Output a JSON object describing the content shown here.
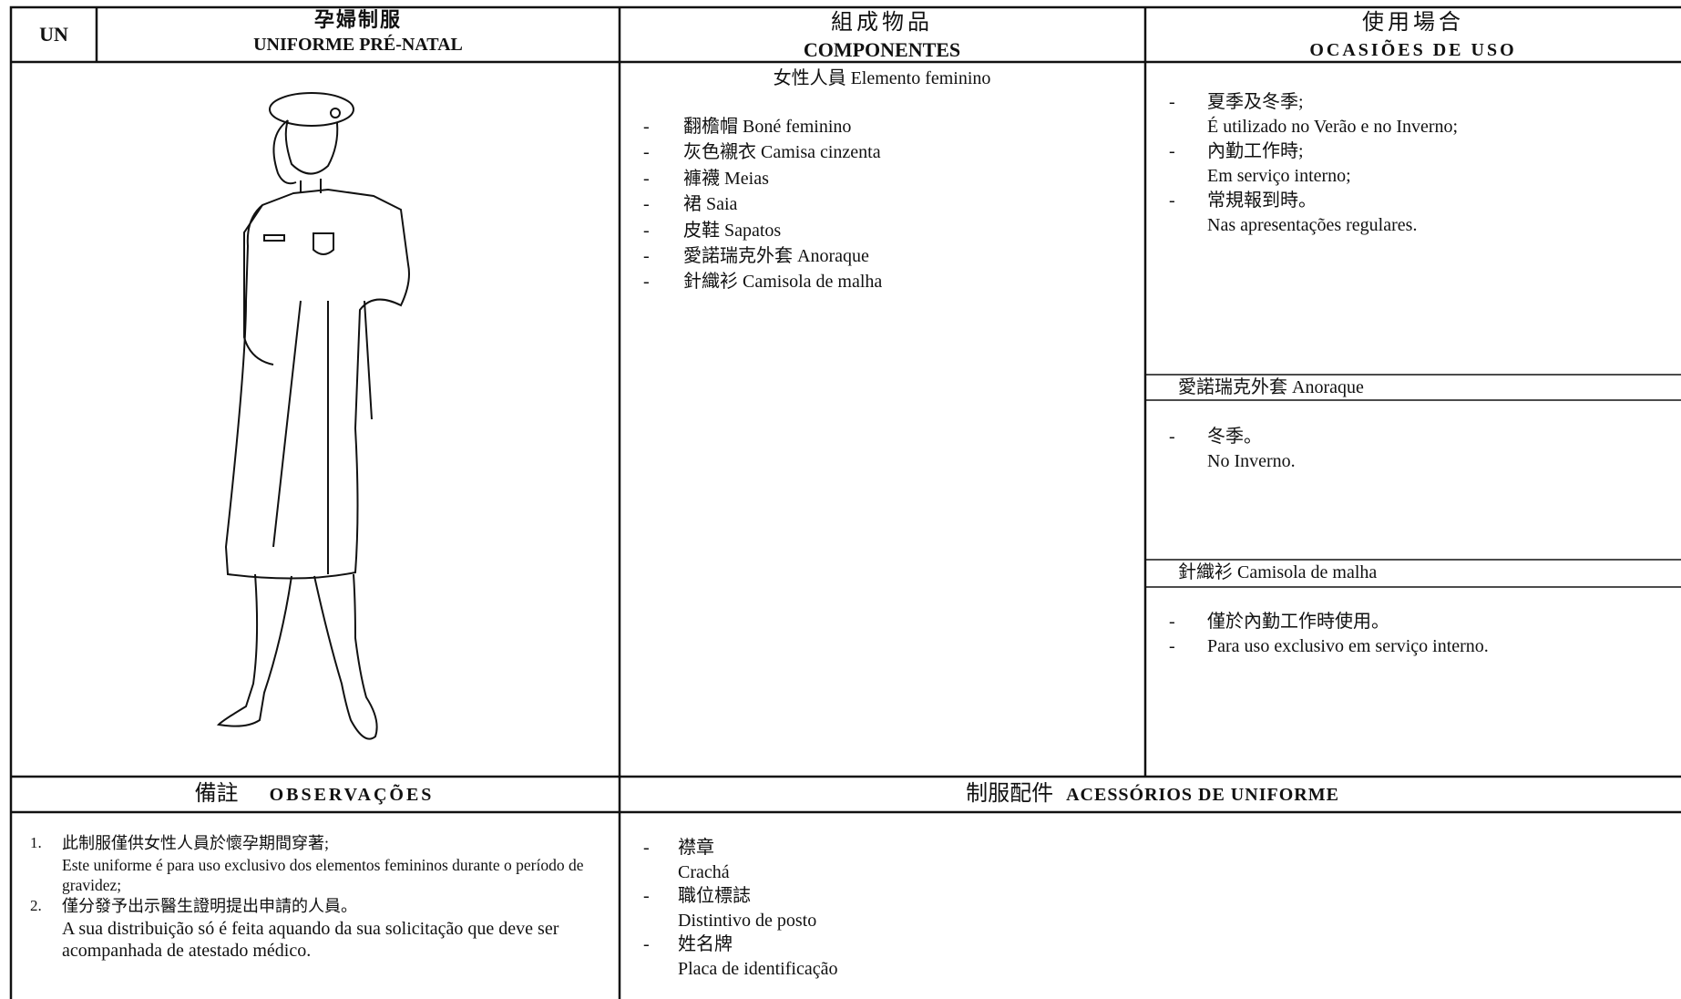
{
  "header": {
    "code": "UN",
    "title_zh": "孕婦制服",
    "title_pt": "UNIFORME PRÉ-NATAL",
    "components_zh": "組成物品",
    "components_pt": "COMPONENTES",
    "occasions_zh": "使用場合",
    "occasions_pt": "OCASIÕES DE USO"
  },
  "components": {
    "heading": "女性人員  Elemento feminino",
    "items": [
      "翻檐帽  Boné feminino",
      "灰色襯衣  Camisa cinzenta",
      "褲襪  Meias",
      "裙  Saia",
      "皮鞋  Sapatos",
      "愛諾瑞克外套  Anoraque",
      "針織衫  Camisola de malha"
    ]
  },
  "occasions": [
    {
      "items": [
        {
          "zh": "夏季及冬季;",
          "pt": "É utilizado no Verão e no Inverno;"
        },
        {
          "zh": "內勤工作時;",
          "pt": "Em serviço interno;"
        },
        {
          "zh": "常規報到時。",
          "pt": "Nas apresentações regulares."
        }
      ]
    },
    {
      "heading": "愛諾瑞克外套  Anoraque",
      "items": [
        {
          "zh": "冬季。",
          "pt": "No Inverno."
        }
      ]
    },
    {
      "heading": "針織衫  Camisola de malha",
      "items": [
        {
          "zh": "僅於內勤工作時使用。"
        },
        {
          "zh": "Para uso exclusivo em serviço interno."
        }
      ]
    }
  ],
  "observations": {
    "title_zh": "備註",
    "title_pt": "OBSERVAÇÕES",
    "items": [
      {
        "zh": "此制服僅供女性人員於懷孕期間穿著;",
        "pt": "Este uniforme é para uso exclusivo dos elementos femininos durante o período de gravidez;"
      },
      {
        "zh": "僅分發予出示醫生證明提出申請的人員。",
        "pt": "A sua distribuição só é feita aquando da sua solicitação que deve ser acompanhada de atestado médico."
      }
    ]
  },
  "accessories": {
    "title_zh": "制服配件",
    "title_pt": "ACESSÓRIOS DE UNIFORME",
    "items": [
      {
        "zh": "襟章",
        "pt": "Crachá"
      },
      {
        "zh": "職位標誌",
        "pt": "Distintivo de posto"
      },
      {
        "zh": "姓名牌",
        "pt": "Placa de identificação"
      }
    ]
  }
}
